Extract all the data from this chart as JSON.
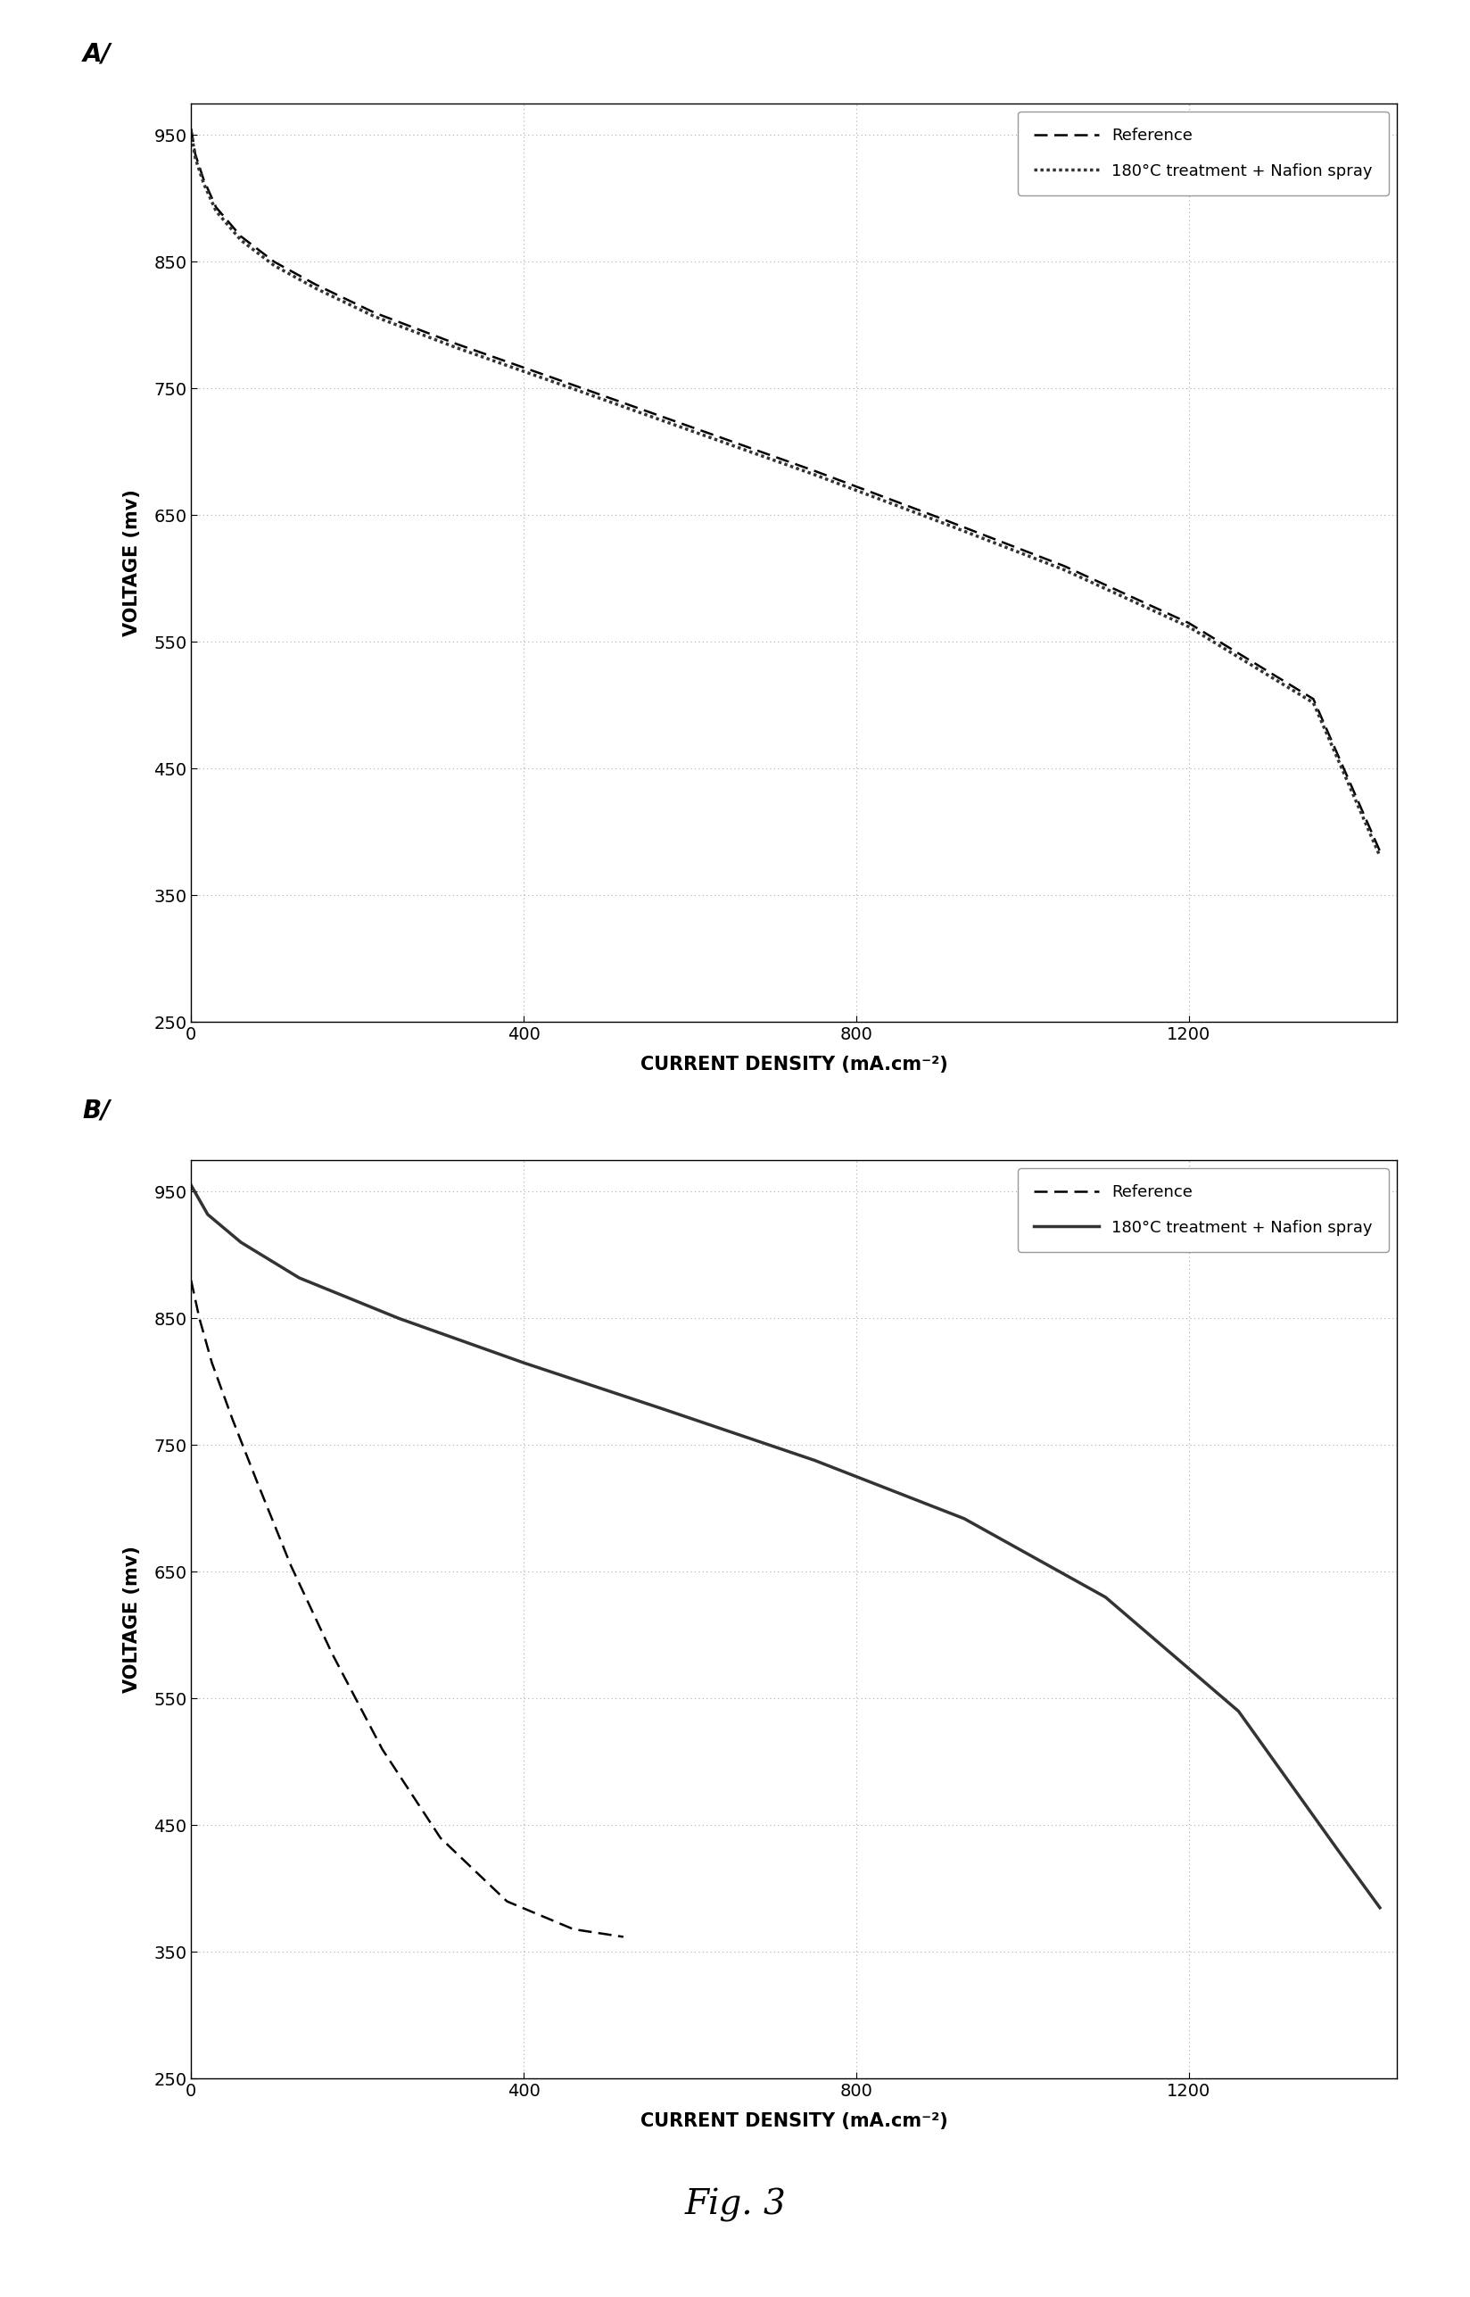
{
  "fig_label": "Fig. 3",
  "panel_A_label": "A/",
  "panel_B_label": "B/",
  "xlabel": "CURRENT DENSITY (mA.cm⁻²)",
  "ylabel": "VOLTAGE (mv)",
  "legend_ref": "Reference",
  "legend_treat": "180°C treatment + Nafion spray",
  "ylim": [
    250,
    975
  ],
  "yticks": [
    250,
    350,
    450,
    550,
    650,
    750,
    850,
    950
  ],
  "xlim": [
    0,
    1450
  ],
  "xticks": [
    0,
    400,
    800,
    1200
  ],
  "background": "#ffffff",
  "A_ref_x": [
    0,
    5,
    15,
    30,
    60,
    100,
    150,
    220,
    320,
    450,
    600,
    750,
    900,
    1050,
    1200,
    1350,
    1430
  ],
  "A_ref_y": [
    955,
    935,
    915,
    893,
    870,
    850,
    832,
    810,
    785,
    755,
    720,
    685,
    648,
    610,
    565,
    505,
    385
  ],
  "A_treat_x": [
    0,
    5,
    15,
    30,
    60,
    100,
    150,
    220,
    320,
    450,
    600,
    750,
    900,
    1050,
    1200,
    1350,
    1430
  ],
  "A_treat_y": [
    953,
    932,
    912,
    890,
    867,
    847,
    829,
    807,
    782,
    752,
    717,
    682,
    645,
    607,
    562,
    502,
    381
  ],
  "B_ref_x": [
    0,
    10,
    25,
    50,
    80,
    120,
    170,
    230,
    300,
    380,
    460,
    520
  ],
  "B_ref_y": [
    880,
    850,
    815,
    770,
    720,
    655,
    585,
    510,
    440,
    390,
    368,
    362
  ],
  "B_treat_x": [
    0,
    20,
    60,
    130,
    250,
    400,
    570,
    750,
    930,
    1100,
    1260,
    1380,
    1430
  ],
  "B_treat_y": [
    955,
    932,
    910,
    882,
    850,
    815,
    778,
    738,
    692,
    630,
    540,
    430,
    385
  ]
}
